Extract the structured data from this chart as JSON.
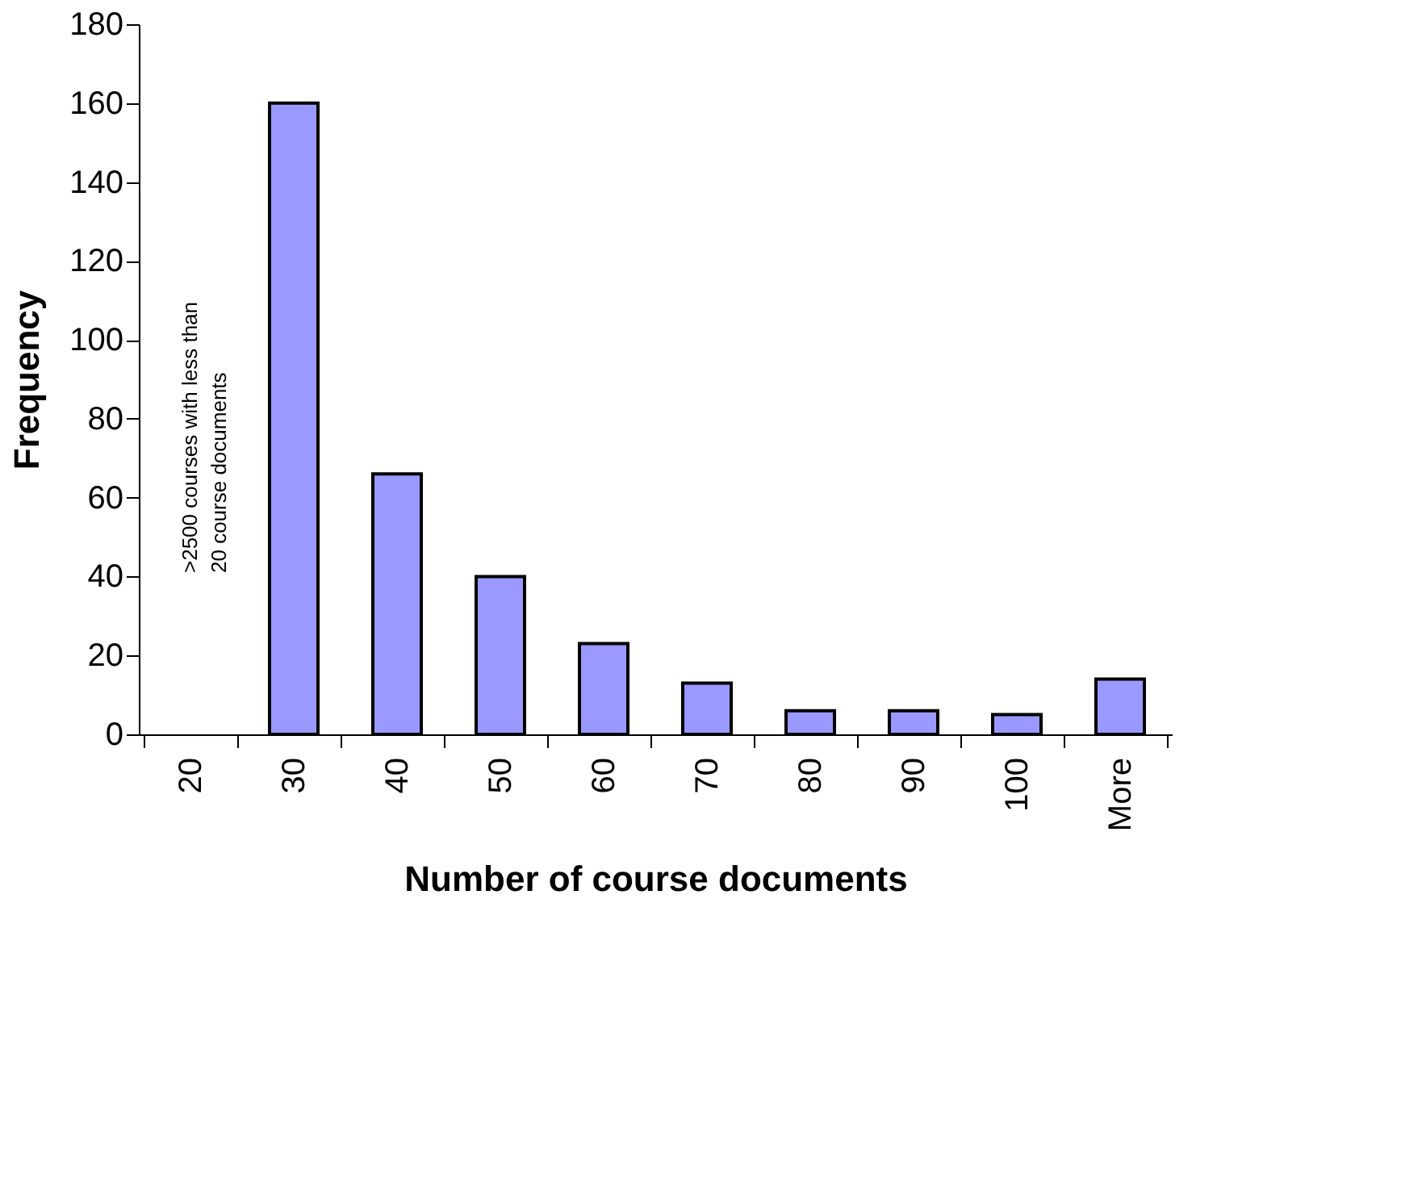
{
  "chart_data": {
    "type": "bar",
    "xlabel": "Number of course documents",
    "ylabel": "Frequency",
    "categories": [
      "20",
      "30",
      "40",
      "50",
      "60",
      "70",
      "80",
      "90",
      "100",
      "More"
    ],
    "values": [
      null,
      160,
      66,
      40,
      23,
      13,
      6,
      6,
      5,
      14
    ],
    "color": "#9999ff",
    "ylim": [
      0,
      180
    ],
    "yticks": [
      0,
      20,
      40,
      60,
      80,
      100,
      120,
      140,
      160,
      180
    ],
    "grid": false,
    "annotations": [
      ">2500 courses with less than 20 course documents"
    ]
  }
}
